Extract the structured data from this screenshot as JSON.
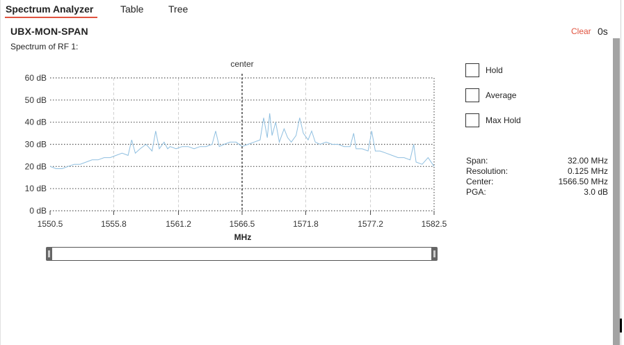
{
  "tabs": [
    {
      "label": "Spectrum Analyzer",
      "active": true
    },
    {
      "label": "Table",
      "active": false
    },
    {
      "label": "Tree",
      "active": false
    }
  ],
  "header": {
    "title": "UBX-MON-SPAN",
    "clear_label": "Clear",
    "age": "0s",
    "subtitle": "Spectrum of RF 1:"
  },
  "options": {
    "hold": {
      "label": "Hold",
      "checked": false
    },
    "average": {
      "label": "Average",
      "checked": false
    },
    "max_hold": {
      "label": "Max Hold",
      "checked": false
    }
  },
  "stats": [
    {
      "label": "Span:",
      "value": "32.00 MHz"
    },
    {
      "label": "Resolution:",
      "value": "0.125 MHz"
    },
    {
      "label": "Center:",
      "value": "1566.50 MHz"
    },
    {
      "label": "PGA:",
      "value": "3.0 dB"
    }
  ],
  "range_slider": {
    "min_fraction": 0.0,
    "max_fraction": 1.0
  },
  "chart_data": {
    "type": "line",
    "xlabel": "MHz",
    "ylabel": "",
    "xlim": [
      1550.5,
      1582.5
    ],
    "ylim": [
      0,
      60
    ],
    "x_ticks": [
      1550.5,
      1555.8,
      1561.2,
      1566.5,
      1571.8,
      1577.2,
      1582.5
    ],
    "x_tick_labels": [
      "1550.5",
      "1555.8",
      "1561.2",
      "1566.5",
      "1571.8",
      "1577.2",
      "1582.5"
    ],
    "y_ticks": [
      0,
      10,
      20,
      30,
      40,
      50,
      60
    ],
    "y_tick_labels": [
      "0 dB",
      "10 dB",
      "20 dB",
      "30 dB",
      "40 dB",
      "50 dB",
      "60 dB"
    ],
    "center_marker": {
      "x": 1566.5,
      "label": "center"
    },
    "grid": true,
    "line_color": "#8fbfe0",
    "series": [
      {
        "x": [
          1550.5,
          1551.0,
          1551.5,
          1552.0,
          1552.5,
          1553.0,
          1553.5,
          1554.0,
          1554.5,
          1555.0,
          1555.5,
          1556.0,
          1556.5,
          1557.0,
          1557.3,
          1557.6,
          1558.0,
          1558.5,
          1559.0,
          1559.3,
          1559.6,
          1560.0,
          1560.3,
          1560.5,
          1561.0,
          1561.5,
          1562.0,
          1562.5,
          1563.0,
          1563.5,
          1564.0,
          1564.3,
          1564.6,
          1565.0,
          1565.5,
          1566.0,
          1566.5,
          1567.0,
          1567.5,
          1568.0,
          1568.3,
          1568.6,
          1568.8,
          1569.0,
          1569.3,
          1569.6,
          1570.0,
          1570.3,
          1570.6,
          1571.0,
          1571.3,
          1571.6,
          1572.0,
          1572.3,
          1572.6,
          1573.0,
          1573.5,
          1574.0,
          1574.5,
          1575.0,
          1575.5,
          1575.8,
          1576.0,
          1576.5,
          1577.0,
          1577.3,
          1577.6,
          1578.0,
          1578.5,
          1579.0,
          1579.5,
          1580.0,
          1580.5,
          1580.8,
          1581.0,
          1581.5,
          1582.0,
          1582.5
        ],
        "y": [
          20,
          19,
          19,
          20,
          21,
          21,
          22,
          23,
          23,
          24,
          24,
          25,
          26,
          25,
          32,
          26,
          28,
          30,
          27,
          36,
          28,
          31,
          28,
          29,
          28,
          29,
          29,
          28,
          29,
          29,
          30,
          36,
          29,
          30,
          31,
          31,
          29,
          30,
          31,
          32,
          42,
          33,
          44,
          34,
          40,
          31,
          37,
          33,
          31,
          34,
          42,
          35,
          32,
          36,
          31,
          30,
          31,
          30,
          30,
          29,
          29,
          35,
          28,
          28,
          27,
          36,
          27,
          27,
          26,
          25,
          24,
          24,
          23,
          30,
          22,
          21,
          24,
          20
        ]
      }
    ]
  }
}
